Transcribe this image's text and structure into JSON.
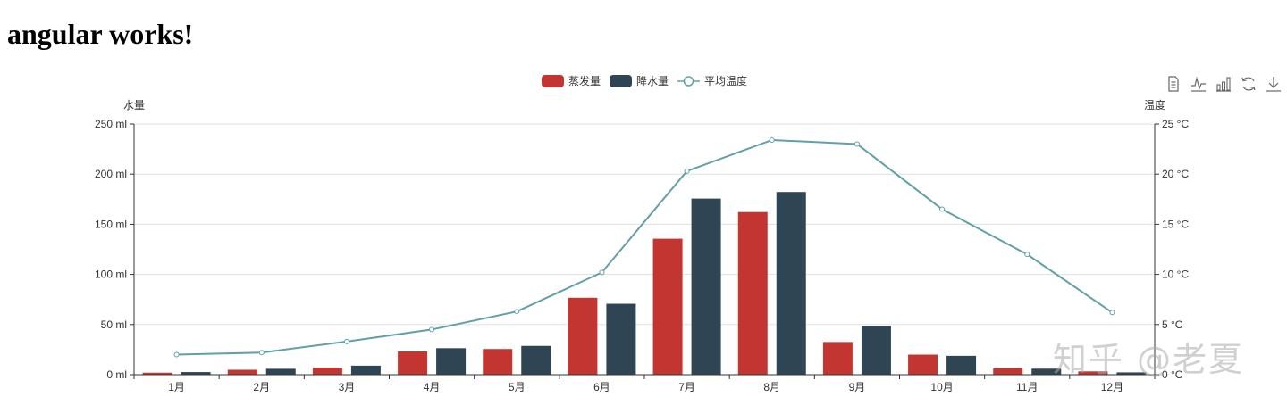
{
  "page": {
    "heading": "angular works!"
  },
  "watermark": "知乎 @老夏",
  "legend": [
    {
      "label": "蒸发量",
      "type": "bar",
      "color": "#c23531"
    },
    {
      "label": "降水量",
      "type": "bar",
      "color": "#2f4554"
    },
    {
      "label": "平均温度",
      "type": "line",
      "color": "#61a0a8"
    }
  ],
  "toolbox": [
    {
      "name": "data-view",
      "title": "数据视图"
    },
    {
      "name": "line-switch",
      "title": "切换为折线图"
    },
    {
      "name": "bar-switch",
      "title": "切换为柱状图"
    },
    {
      "name": "restore",
      "title": "还原"
    },
    {
      "name": "save-image",
      "title": "保存为图片"
    }
  ],
  "chart_data": {
    "type": "bar",
    "title": "",
    "categories": [
      "1月",
      "2月",
      "3月",
      "4月",
      "5月",
      "6月",
      "7月",
      "8月",
      "9月",
      "10月",
      "11月",
      "12月"
    ],
    "series": [
      {
        "name": "蒸发量",
        "type": "bar",
        "axis": "left",
        "color": "#c23531",
        "values": [
          2.0,
          4.9,
          7.0,
          23.2,
          25.6,
          76.7,
          135.6,
          162.2,
          32.6,
          20.0,
          6.4,
          3.3
        ]
      },
      {
        "name": "降水量",
        "type": "bar",
        "axis": "left",
        "color": "#2f4554",
        "values": [
          2.6,
          5.9,
          9.0,
          26.4,
          28.7,
          70.7,
          175.6,
          182.2,
          48.7,
          18.8,
          6.0,
          2.3
        ]
      },
      {
        "name": "平均温度",
        "type": "line",
        "axis": "right",
        "color": "#61a0a8",
        "values": [
          2.0,
          2.2,
          3.3,
          4.5,
          6.3,
          10.2,
          20.3,
          23.4,
          23.0,
          16.5,
          12.0,
          6.2
        ]
      }
    ],
    "y_left": {
      "name": "水量",
      "min": 0,
      "max": 250,
      "interval": 50,
      "ticks": [
        "0 ml",
        "50 ml",
        "100 ml",
        "150 ml",
        "200 ml",
        "250 ml"
      ]
    },
    "y_right": {
      "name": "温度",
      "min": 0,
      "max": 25,
      "interval": 5,
      "ticks": [
        "0 °C",
        "5 °C",
        "10 °C",
        "15 °C",
        "20 °C",
        "25 °C"
      ]
    },
    "xlabel": "",
    "grid": true,
    "legend_position": "top-center"
  }
}
